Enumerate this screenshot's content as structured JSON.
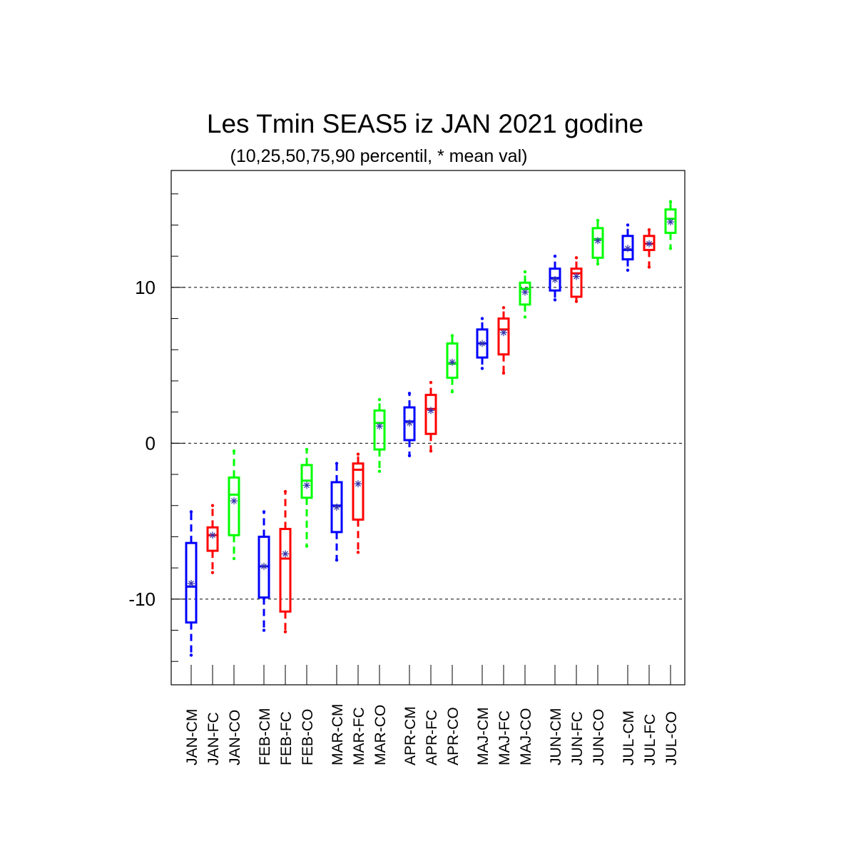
{
  "chart_data": {
    "type": "box",
    "title": "Les Tmin SEAS5 iz JAN 2021 godine",
    "subtitle": "(10,25,50,75,90 percentil, * mean val)",
    "xlabel": "",
    "ylabel": "",
    "ylim": [
      -15.5,
      17.5
    ],
    "yticks": [
      -10,
      0,
      10
    ],
    "ytick_labels": [
      "-10",
      "0",
      "10"
    ],
    "grid_lines_y": [
      -10,
      0,
      10
    ],
    "grid": "horizontal dashed at labeled ticks",
    "colors": {
      "CM": "#0000ff",
      "FC": "#ff0000",
      "CO": "#00ff00",
      "mean": "#3333aa"
    },
    "categories": [
      "JAN-CM",
      "JAN-FC",
      "JAN-CO",
      "FEB-CM",
      "FEB-FC",
      "FEB-CO",
      "MAR-CM",
      "MAR-FC",
      "MAR-CO",
      "APR-CM",
      "APR-FC",
      "APR-CO",
      "MAJ-CM",
      "MAJ-FC",
      "MAJ-CO",
      "JUN-CM",
      "JUN-FC",
      "JUN-CO",
      "JUL-CM",
      "JUL-FC",
      "JUL-CO"
    ],
    "boxes": [
      {
        "label": "JAN-CM",
        "group": "CM",
        "p10": -13.6,
        "p25": -11.5,
        "p50": -9.2,
        "p75": -6.4,
        "p90": -4.4,
        "mean": -9.0
      },
      {
        "label": "JAN-FC",
        "group": "FC",
        "p10": -8.3,
        "p25": -6.9,
        "p50": -5.9,
        "p75": -5.4,
        "p90": -4.0,
        "mean": -5.9
      },
      {
        "label": "JAN-CO",
        "group": "CO",
        "p10": -7.4,
        "p25": -5.9,
        "p50": -3.3,
        "p75": -2.2,
        "p90": -0.5,
        "mean": -3.7
      },
      {
        "label": "FEB-CM",
        "group": "CM",
        "p10": -12.0,
        "p25": -9.9,
        "p50": -7.9,
        "p75": -6.0,
        "p90": -4.4,
        "mean": -7.9
      },
      {
        "label": "FEB-FC",
        "group": "FC",
        "p10": -12.1,
        "p25": -10.8,
        "p50": -7.4,
        "p75": -5.5,
        "p90": -3.1,
        "mean": -7.1
      },
      {
        "label": "FEB-CO",
        "group": "CO",
        "p10": -6.6,
        "p25": -3.5,
        "p50": -2.4,
        "p75": -1.4,
        "p90": -0.4,
        "mean": -2.7
      },
      {
        "label": "MAR-CM",
        "group": "CM",
        "p10": -7.5,
        "p25": -5.7,
        "p50": -4.0,
        "p75": -2.5,
        "p90": -1.3,
        "mean": -4.1
      },
      {
        "label": "MAR-FC",
        "group": "FC",
        "p10": -7.0,
        "p25": -4.9,
        "p50": -1.7,
        "p75": -1.3,
        "p90": -0.7,
        "mean": -2.6
      },
      {
        "label": "MAR-CO",
        "group": "CO",
        "p10": -1.8,
        "p25": -0.4,
        "p50": 1.3,
        "p75": 2.1,
        "p90": 2.8,
        "mean": 1.1
      },
      {
        "label": "APR-CM",
        "group": "CM",
        "p10": -0.8,
        "p25": 0.2,
        "p50": 1.4,
        "p75": 2.3,
        "p90": 3.2,
        "mean": 1.3
      },
      {
        "label": "APR-FC",
        "group": "FC",
        "p10": -0.5,
        "p25": 0.6,
        "p50": 2.2,
        "p75": 3.1,
        "p90": 3.9,
        "mean": 2.1
      },
      {
        "label": "APR-CO",
        "group": "CO",
        "p10": 3.3,
        "p25": 4.2,
        "p50": 5.1,
        "p75": 6.4,
        "p90": 6.9,
        "mean": 5.2
      },
      {
        "label": "MAJ-CM",
        "group": "CM",
        "p10": 4.8,
        "p25": 5.5,
        "p50": 6.4,
        "p75": 7.3,
        "p90": 8.0,
        "mean": 6.4
      },
      {
        "label": "MAJ-FC",
        "group": "FC",
        "p10": 4.5,
        "p25": 5.7,
        "p50": 7.3,
        "p75": 8.0,
        "p90": 8.7,
        "mean": 7.1
      },
      {
        "label": "MAJ-CO",
        "group": "CO",
        "p10": 8.1,
        "p25": 8.9,
        "p50": 9.9,
        "p75": 10.3,
        "p90": 11.0,
        "mean": 9.7
      },
      {
        "label": "JUN-CM",
        "group": "CM",
        "p10": 9.2,
        "p25": 9.8,
        "p50": 10.6,
        "p75": 11.2,
        "p90": 12.0,
        "mean": 10.5
      },
      {
        "label": "JUN-FC",
        "group": "FC",
        "p10": 9.1,
        "p25": 9.4,
        "p50": 10.9,
        "p75": 11.2,
        "p90": 11.9,
        "mean": 10.7
      },
      {
        "label": "JUN-CO",
        "group": "CO",
        "p10": 11.5,
        "p25": 11.9,
        "p50": 13.1,
        "p75": 13.8,
        "p90": 14.3,
        "mean": 13.0
      },
      {
        "label": "JUL-CM",
        "group": "CM",
        "p10": 11.1,
        "p25": 11.8,
        "p50": 12.4,
        "p75": 13.3,
        "p90": 14.0,
        "mean": 12.5
      },
      {
        "label": "JUL-FC",
        "group": "FC",
        "p10": 11.3,
        "p25": 12.4,
        "p50": 12.8,
        "p75": 13.3,
        "p90": 13.7,
        "mean": 12.8
      },
      {
        "label": "JUL-CO",
        "group": "CO",
        "p10": 12.5,
        "p25": 13.5,
        "p50": 14.4,
        "p75": 15.0,
        "p90": 15.5,
        "mean": 14.2
      }
    ]
  }
}
